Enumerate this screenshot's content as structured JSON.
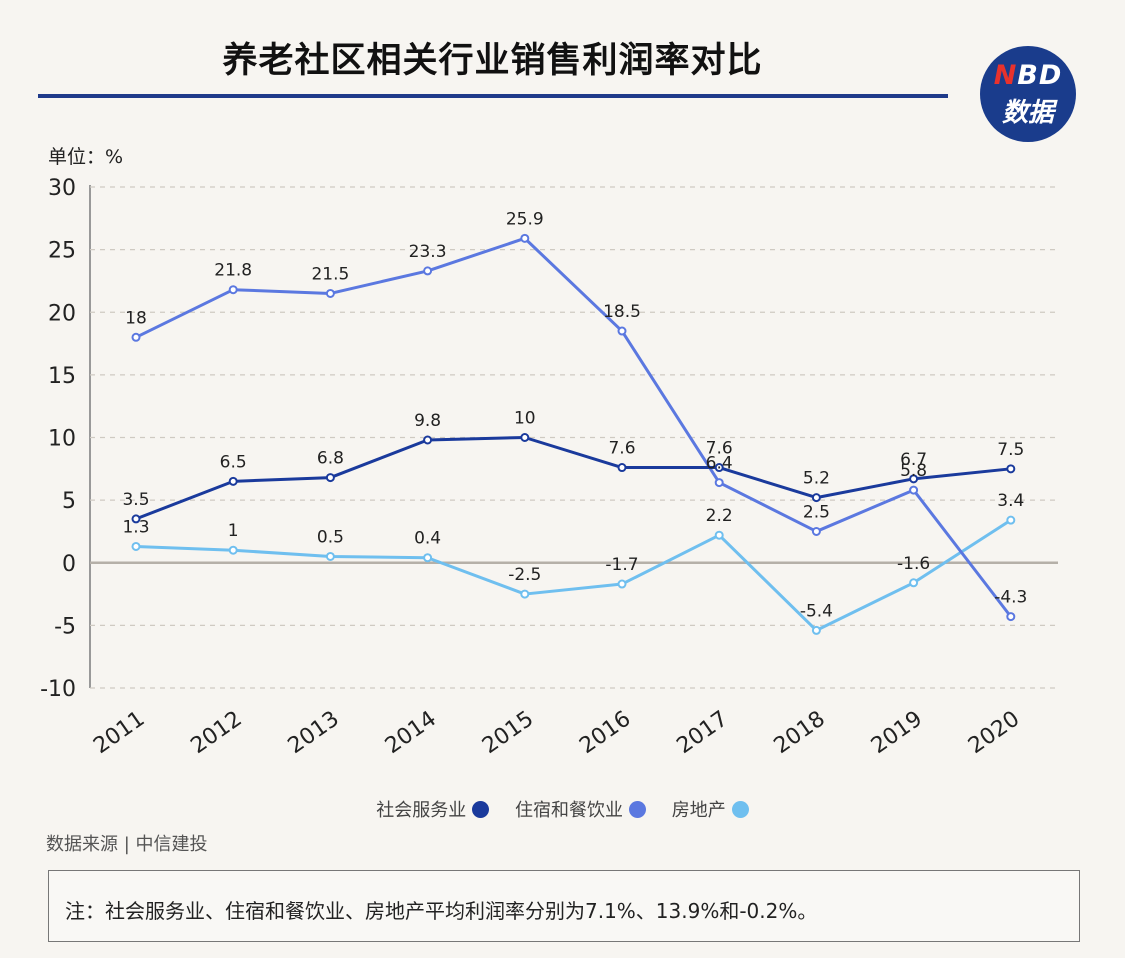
{
  "title": "养老社区相关行业销售利润率对比",
  "logo": {
    "top": "NBD",
    "top_n": "N",
    "top_rest": "BD",
    "bottom": "数据"
  },
  "unit_label": "单位：%",
  "source": "数据来源 | 中信建投",
  "note": "注：社会服务业、住宿和餐饮业、房地产平均利润率分别为7.1%、13.9%和-0.2%。",
  "colors": {
    "social": "#1a3a9c",
    "hotel": "#5b78e0",
    "realestate": "#6fbfef",
    "grid": "#cfcac2",
    "zero_line": "#b5b0a8",
    "axis": "#999"
  },
  "chart_data": {
    "type": "line",
    "x": [
      "2011",
      "2012",
      "2013",
      "2014",
      "2015",
      "2016",
      "2017",
      "2018",
      "2019",
      "2020"
    ],
    "ylim": [
      -10,
      30
    ],
    "yticks": [
      30,
      25,
      20,
      15,
      10,
      5,
      0,
      -5,
      -10
    ],
    "grid": true,
    "legend_position": "bottom",
    "series": [
      {
        "name": "社会服务业",
        "key": "social",
        "values": [
          3.5,
          6.5,
          6.8,
          9.8,
          10,
          7.6,
          7.6,
          5.2,
          6.7,
          7.5
        ],
        "labels": [
          "3.5",
          "6.5",
          "6.8",
          "9.8",
          "10",
          "7.6",
          "7.6",
          "5.2",
          "6.7",
          "7.5"
        ]
      },
      {
        "name": "住宿和餐饮业",
        "key": "hotel",
        "values": [
          18,
          21.8,
          21.5,
          23.3,
          25.9,
          18.5,
          6.4,
          2.5,
          5.8,
          -4.3
        ],
        "labels": [
          "18",
          "21.8",
          "21.5",
          "23.3",
          "25.9",
          "18.5",
          "6.4",
          "2.5",
          "5.8",
          "-4.3"
        ]
      },
      {
        "name": "房地产",
        "key": "realestate",
        "values": [
          1.3,
          1,
          0.5,
          0.4,
          -2.5,
          -1.7,
          2.2,
          -5.4,
          -1.6,
          3.4
        ],
        "labels": [
          "1.3",
          "1",
          "0.5",
          "0.4",
          "-2.5",
          "-1.7",
          "2.2",
          "-5.4",
          "-1.6",
          "3.4"
        ]
      }
    ]
  }
}
